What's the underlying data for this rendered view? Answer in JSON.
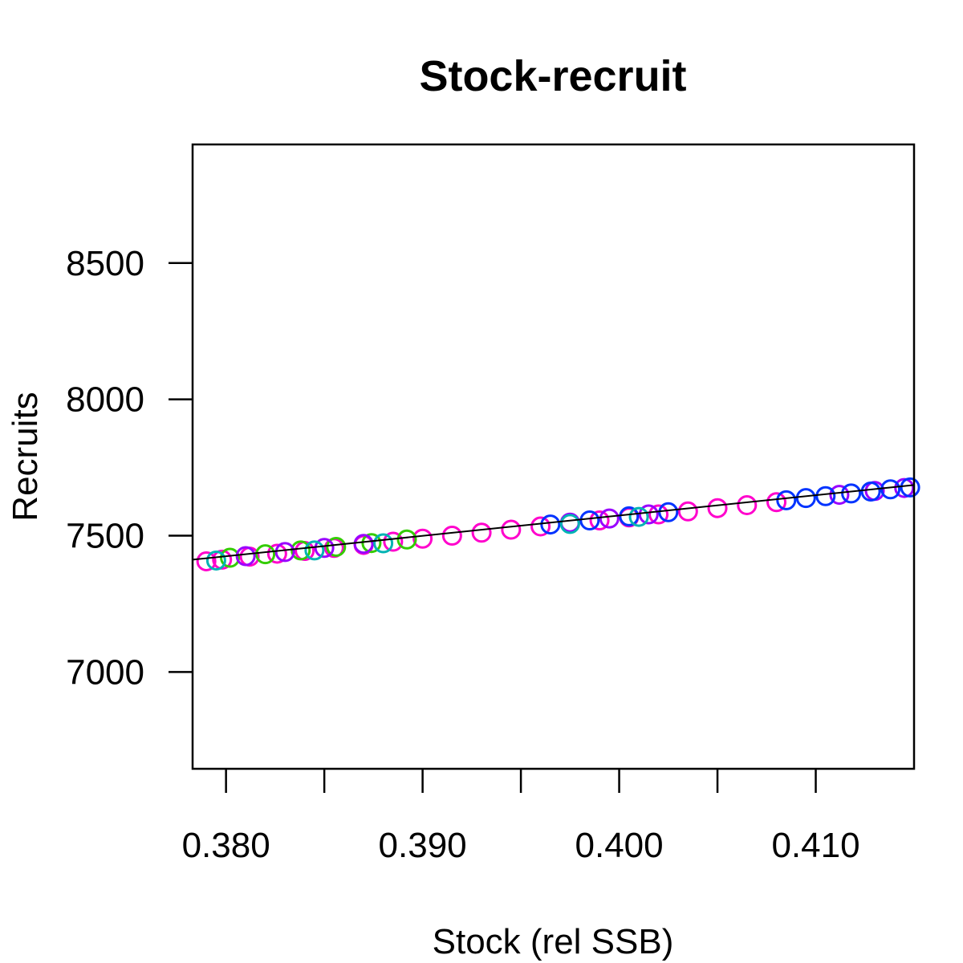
{
  "chart_data": {
    "type": "scatter",
    "title": "Stock-recruit",
    "xlabel": "Stock (rel SSB)",
    "ylabel": "Recruits",
    "xlim": [
      0.3783,
      0.415
    ],
    "ylim": [
      6645,
      8935
    ],
    "x_ticks": [
      0.38,
      0.385,
      0.39,
      0.395,
      0.4,
      0.405,
      0.41
    ],
    "x_tick_labels": [
      "0.380",
      "0.390",
      "0.400",
      "0.410"
    ],
    "x_tick_label_values": [
      0.38,
      0.39,
      0.4,
      0.41
    ],
    "y_ticks": [
      7000,
      7500,
      8000,
      8500
    ],
    "y_tick_labels": [
      "7000",
      "7500",
      "8000",
      "8500"
    ],
    "grid": false,
    "fit_line": {
      "x": [
        0.3783,
        0.415
      ],
      "y": [
        7412,
        7686
      ],
      "color": "#000000"
    },
    "series": [
      {
        "color": "#ff00cc",
        "x": [
          0.379,
          0.3798,
          0.3812,
          0.3826,
          0.384,
          0.3855,
          0.387,
          0.3885,
          0.39,
          0.3915,
          0.393,
          0.3945,
          0.396,
          0.3975,
          0.399,
          0.4005,
          0.402,
          0.4035,
          0.405,
          0.4065,
          0.408
        ],
        "y": [
          7406,
          7412,
          7423,
          7434,
          7444,
          7455,
          7466,
          7478,
          7489,
          7500,
          7511,
          7522,
          7534,
          7545,
          7556,
          7567,
          7578,
          7589,
          7601,
          7612,
          7623
        ]
      },
      {
        "color": "#33cc00",
        "x": [
          0.3802,
          0.382,
          0.3838,
          0.3856,
          0.3874,
          0.3892
        ],
        "y": [
          7419,
          7432,
          7446,
          7459,
          7473,
          7486
        ]
      },
      {
        "color": "#9900ff",
        "x": [
          0.381,
          0.383,
          0.385,
          0.387,
          0.3975,
          0.3995,
          0.4015,
          0.4112,
          0.413,
          0.4145
        ],
        "y": [
          7425,
          7440,
          7455,
          7470,
          7548,
          7563,
          7578,
          7650,
          7664,
          7675
        ]
      },
      {
        "color": "#0033ff",
        "x": [
          0.3965,
          0.3985,
          0.4005,
          0.4025,
          0.4085,
          0.4095,
          0.4105,
          0.4118,
          0.4128,
          0.4138,
          0.4148
        ],
        "y": [
          7541,
          7556,
          7571,
          7586,
          7630,
          7638,
          7645,
          7655,
          7662,
          7670,
          7677
        ]
      },
      {
        "color": "#00b3b3",
        "x": [
          0.3795,
          0.3845,
          0.388,
          0.3975,
          0.401
        ],
        "y": [
          7409,
          7446,
          7472,
          7543,
          7569
        ]
      }
    ]
  }
}
